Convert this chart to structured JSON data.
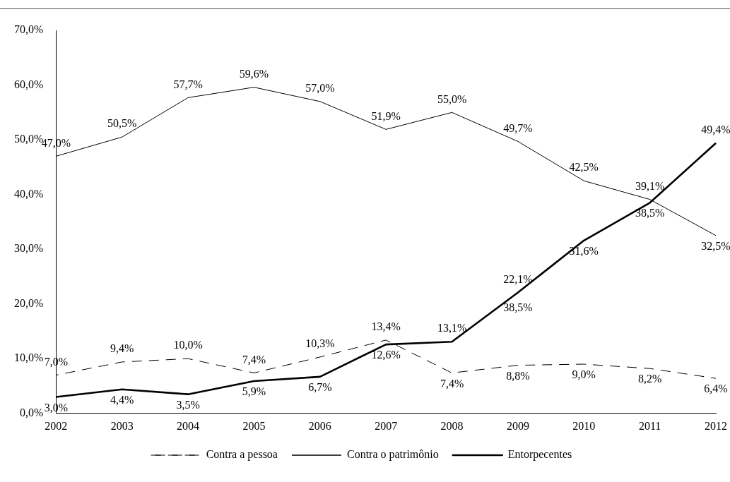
{
  "chart_data": {
    "type": "line",
    "categories": [
      "2002",
      "2003",
      "2004",
      "2005",
      "2006",
      "2007",
      "2008",
      "2009",
      "2010",
      "2011",
      "2012"
    ],
    "series": [
      {
        "name": "Contra a pessoa",
        "color": "#000000",
        "line_style": "dashed",
        "values": [
          7.0,
          9.4,
          10.0,
          7.4,
          10.3,
          13.4,
          7.4,
          8.8,
          9.0,
          8.2,
          6.4
        ],
        "value_labels": [
          "7,0%",
          "9,4%",
          "10,0%",
          "7,4%",
          "10,3%",
          "13,4%",
          "7,4%",
          "8,8%",
          "9,0%",
          "8,2%",
          "6,4%"
        ]
      },
      {
        "name": "Contra o patrimônio",
        "color": "#000000",
        "line_style": "solid",
        "values": [
          47.0,
          50.5,
          57.7,
          59.6,
          57.0,
          51.9,
          55.0,
          49.7,
          42.5,
          39.1,
          32.5
        ],
        "value_labels": [
          "47,0%",
          "50,5%",
          "57,7%",
          "59,6%",
          "57,0%",
          "51,9%",
          "55,0%",
          "49,7%",
          "42,5%",
          "39,1%",
          "32,5%"
        ]
      },
      {
        "name": "Entorpecentes",
        "color": "#000000",
        "line_style": "solid",
        "values": [
          3.0,
          4.4,
          3.5,
          5.9,
          6.7,
          12.6,
          13.1,
          22.1,
          31.6,
          38.5,
          49.4
        ],
        "value_labels": [
          "3,0%",
          "4,4%",
          "3,5%",
          "5,9%",
          "6,7%",
          "12,6%",
          "13,1%",
          "22,1%",
          "31,6%",
          "38,5%",
          "49,4%"
        ]
      }
    ],
    "ylim": [
      0,
      70
    ],
    "yticks": [
      {
        "value": 0,
        "label": "0,0%"
      },
      {
        "value": 10,
        "label": "10,0%"
      },
      {
        "value": 20,
        "label": "20,0%"
      },
      {
        "value": 30,
        "label": "30,0%"
      },
      {
        "value": 40,
        "label": "40,0%"
      },
      {
        "value": 50,
        "label": "50,0%"
      },
      {
        "value": 60,
        "label": "60,0%"
      },
      {
        "value": 70,
        "label": "70,0%"
      }
    ],
    "grid": false,
    "legend": "bottom",
    "marker": "none",
    "annotations": [
      {
        "text": "38,5%",
        "x": "2009",
        "y": 22.1
      }
    ]
  }
}
